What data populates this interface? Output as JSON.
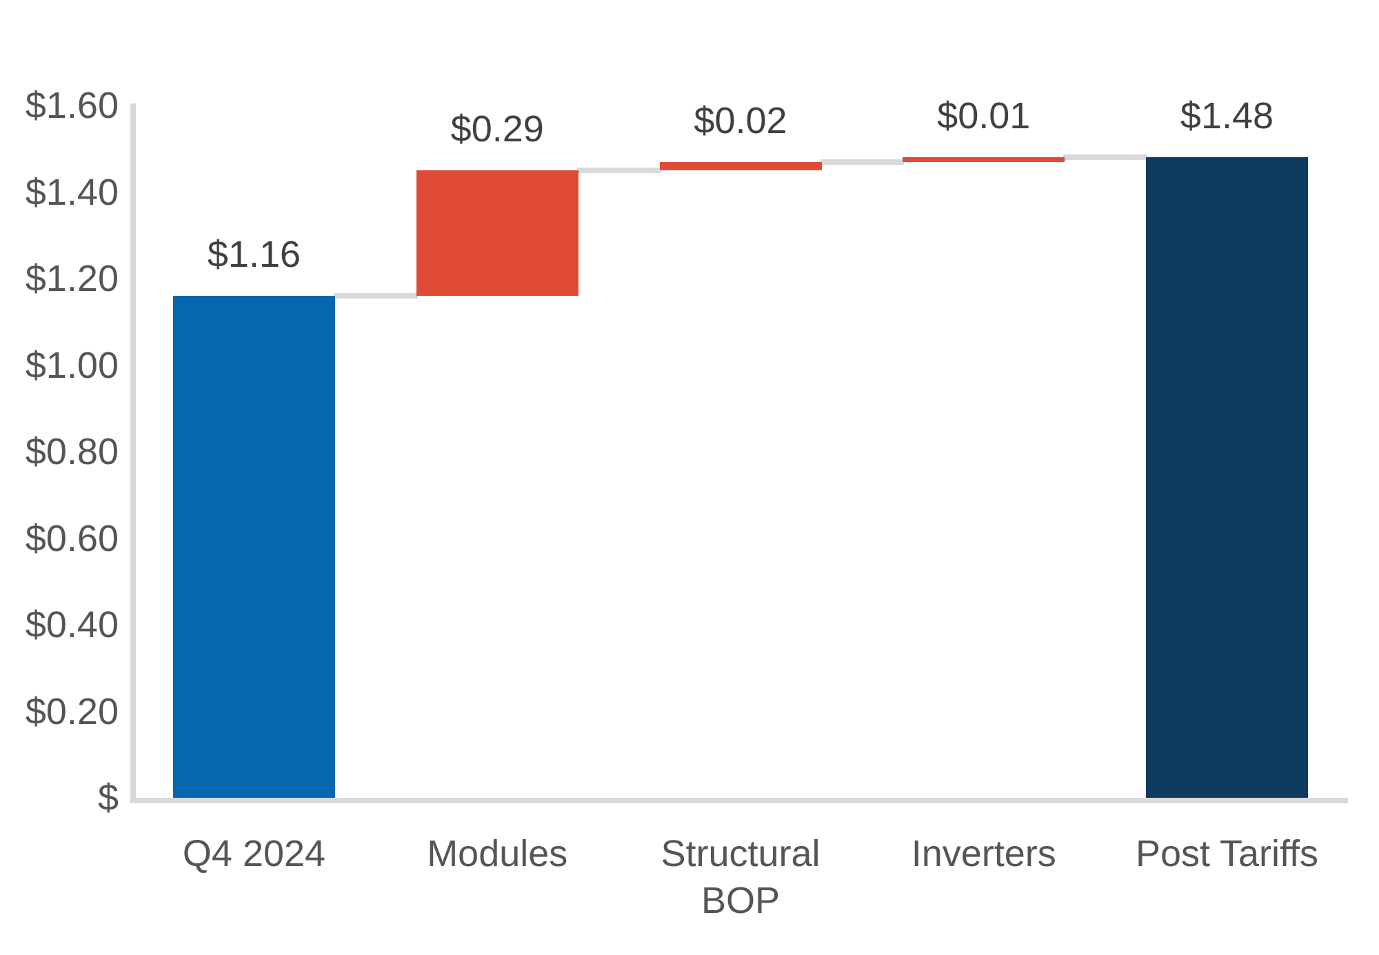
{
  "chart_data": {
    "type": "bar",
    "subtype": "waterfall",
    "title": "",
    "xlabel": "",
    "ylabel": "",
    "categories": [
      "Q4 2024",
      "Modules",
      "Structural BOP",
      "Inverters",
      "Post Tariffs"
    ],
    "values": [
      1.16,
      0.29,
      0.02,
      0.01,
      1.48
    ],
    "bar_roles": [
      "base",
      "increase",
      "increase",
      "increase",
      "total"
    ],
    "bar_starts": [
      0,
      1.16,
      1.45,
      1.47,
      0
    ],
    "bar_ends": [
      1.16,
      1.45,
      1.47,
      1.48,
      1.48
    ],
    "value_labels": [
      "$1.16",
      "$0.29",
      "$0.02",
      "$0.01",
      "$1.48"
    ],
    "ylim": [
      0,
      1.6
    ],
    "ytick_values": [
      0,
      0.2,
      0.4,
      0.6,
      0.8,
      1.0,
      1.2,
      1.4,
      1.6
    ],
    "ytick_labels": [
      "$",
      "$0.20",
      "$0.40",
      "$0.60",
      "$0.80",
      "$1.00",
      "$1.20",
      "$1.40",
      "$1.60"
    ],
    "grid": false,
    "legend": false,
    "connectors": true,
    "colors": {
      "base": "#0667B1",
      "increase": "#E04B35",
      "total": "#0D3A5E",
      "connector": "#D9D9D9",
      "axis_line": "#D9D9D9",
      "tick_text": "#555555",
      "value_label_text": "#404040"
    }
  }
}
